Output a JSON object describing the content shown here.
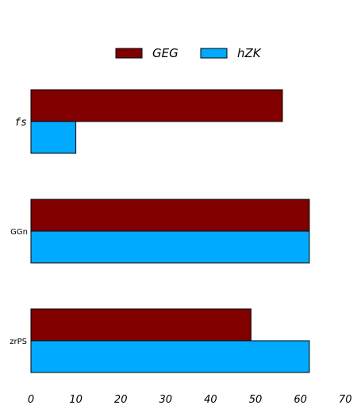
{
  "chart_data": {
    "type": "bar",
    "orientation": "horizontal",
    "categories": [
      "fs",
      "GGn",
      "zrPS"
    ],
    "series": [
      {
        "name": "GEG",
        "color": "#800000",
        "values": [
          56,
          62,
          49
        ]
      },
      {
        "name": "hZK",
        "color": "#00aaff",
        "values": [
          10,
          62,
          62
        ]
      }
    ],
    "xlim": [
      0,
      70
    ],
    "xticks": [
      "0",
      "10",
      "20",
      "30",
      "40",
      "50",
      "60",
      "70"
    ],
    "grid": false,
    "legend_position": "top-center"
  }
}
